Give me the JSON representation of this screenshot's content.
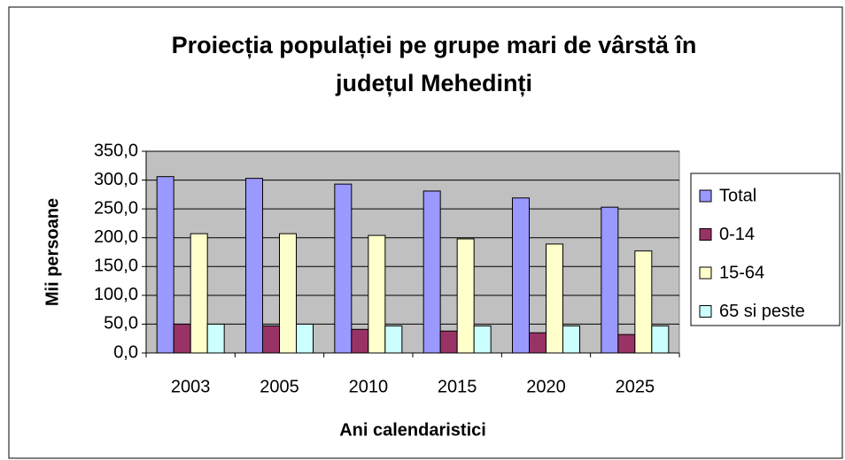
{
  "chart_data": {
    "type": "bar",
    "title": [
      "Proiecția populației pe grupe mari de vârstă în",
      "județul Mehedinți"
    ],
    "y_label": "Mii persoane",
    "x_label": "Ani calendaristici",
    "categories": [
      "2003",
      "2005",
      "2010",
      "2015",
      "2020",
      "2025"
    ],
    "series": [
      {
        "name": "Total",
        "color": "#9999ff",
        "values": [
          306,
          303,
          293,
          281,
          269,
          253
        ]
      },
      {
        "name": "0-14",
        "color": "#993366",
        "values": [
          50,
          47,
          41,
          38,
          35,
          32
        ]
      },
      {
        "name": "15-64",
        "color": "#ffffcc",
        "values": [
          207,
          207,
          204,
          198,
          189,
          177
        ]
      },
      {
        "name": "65 si peste",
        "color": "#ccffff",
        "values": [
          50,
          50,
          47,
          47,
          47,
          47
        ]
      }
    ],
    "ylim": [
      0,
      350
    ],
    "yticks": [
      {
        "value": 0,
        "label": "0,0"
      },
      {
        "value": 50,
        "label": "50,0"
      },
      {
        "value": 100,
        "label": "100,0"
      },
      {
        "value": 150,
        "label": "150,0"
      },
      {
        "value": 200,
        "label": "200,0"
      },
      {
        "value": 250,
        "label": "250,0"
      },
      {
        "value": 300,
        "label": "300,0"
      },
      {
        "value": 350,
        "label": "350,0"
      }
    ],
    "grid": true,
    "legend": "right"
  }
}
